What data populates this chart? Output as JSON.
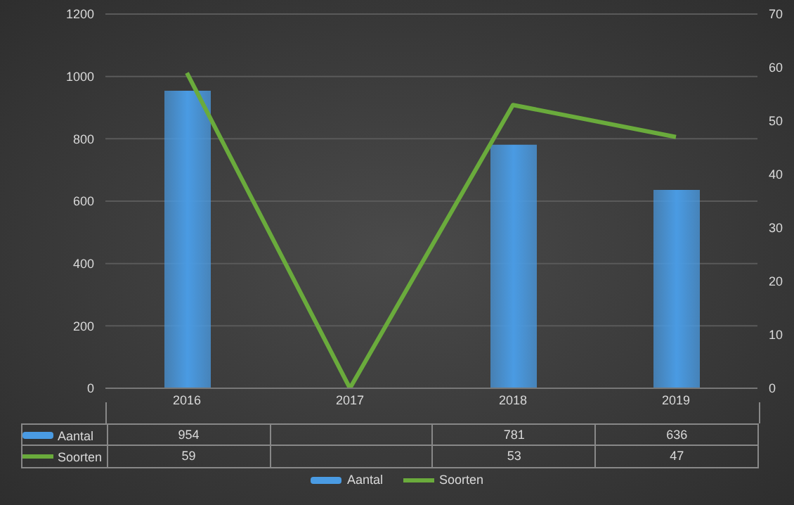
{
  "chart_data": {
    "type": "bar",
    "categories": [
      "2016",
      "2017",
      "2018",
      "2019"
    ],
    "series": [
      {
        "name": "Aantal",
        "color": "#4a9be3",
        "values": [
          954,
          null,
          781,
          636
        ],
        "value_labels": [
          "954",
          null,
          "781",
          "636"
        ]
      },
      {
        "name": "Soorten",
        "type": "line",
        "axis": "y2",
        "color": "#6aab3c",
        "values": [
          59,
          0,
          53,
          47
        ],
        "value_labels": [
          "59",
          null,
          "53",
          "47"
        ]
      }
    ],
    "ylim": [
      0,
      1200
    ],
    "yticks": [
      0,
      200,
      400,
      600,
      800,
      1000,
      1200
    ],
    "y2lim": [
      0,
      70
    ],
    "y2ticks": [
      0,
      10,
      20,
      30,
      40,
      50,
      60,
      70
    ],
    "grid": "y",
    "legend": "bottom",
    "marker": "none",
    "line_style": "solid"
  }
}
